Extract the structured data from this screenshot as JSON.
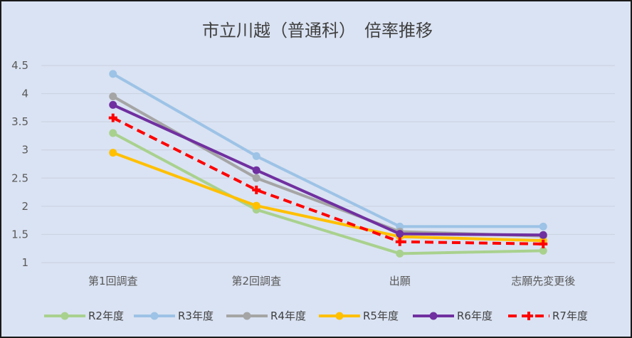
{
  "chart_data": {
    "type": "line",
    "title": "市立川越（普通科）　倍率推移",
    "xlabel": "",
    "ylabel": "",
    "categories": [
      "第1回調査",
      "第2回調査",
      "出願",
      "志願先変更後"
    ],
    "ylim": [
      1,
      4.5
    ],
    "yticks": [
      "1",
      "1.5",
      "2",
      "2.5",
      "3",
      "3.5",
      "4",
      "4.5"
    ],
    "grid": true,
    "legend_position": "bottom",
    "series": [
      {
        "name": "R2年度",
        "values": [
          3.3,
          1.94,
          1.16,
          1.21
        ],
        "color": "#a9d18e",
        "dashed": false
      },
      {
        "name": "R3年度",
        "values": [
          4.35,
          2.89,
          1.64,
          1.64
        ],
        "color": "#9dc3e6",
        "dashed": false
      },
      {
        "name": "R4年度",
        "values": [
          3.95,
          2.5,
          1.55,
          1.47
        ],
        "color": "#a5a5a5",
        "dashed": false
      },
      {
        "name": "R5年度",
        "values": [
          2.95,
          2.01,
          1.46,
          1.39
        ],
        "color": "#ffc000",
        "dashed": false
      },
      {
        "name": "R6年度",
        "values": [
          3.8,
          2.64,
          1.51,
          1.49
        ],
        "color": "#7030a0",
        "dashed": false
      },
      {
        "name": "R7年度",
        "values": [
          3.57,
          2.29,
          1.37,
          1.33
        ],
        "color": "#ff0000",
        "dashed": true
      }
    ]
  }
}
